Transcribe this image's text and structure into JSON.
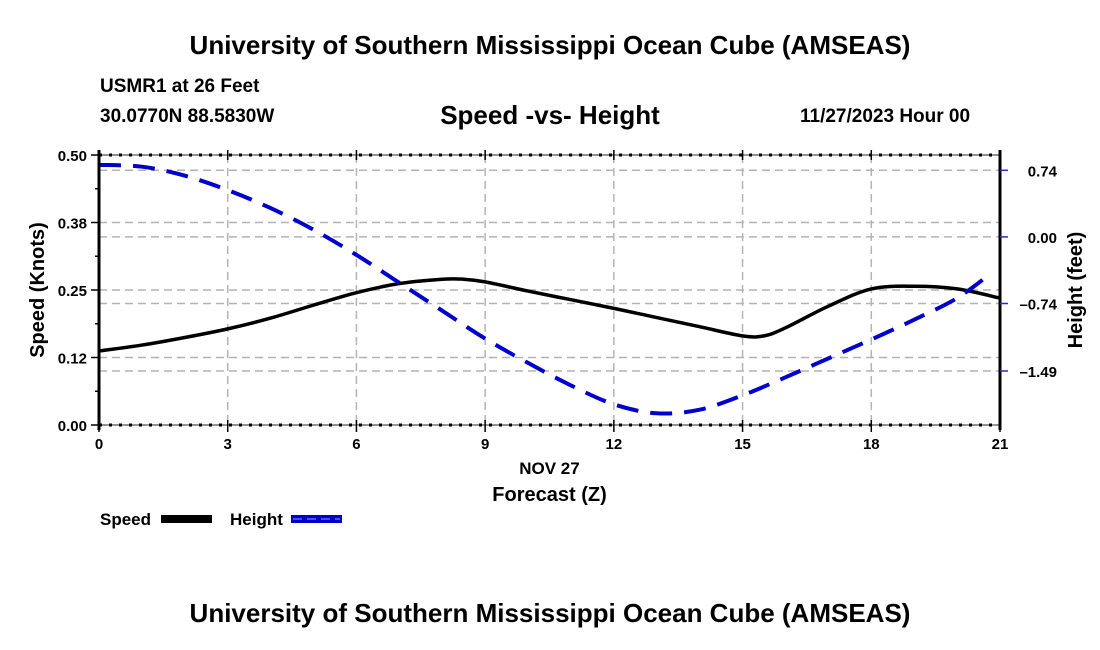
{
  "header": {
    "title_top": "University of Southern Mississippi Ocean Cube (AMSEAS)",
    "station": "USMR1 at 26 Feet",
    "coords": "30.0770N  88.5830W",
    "subtitle": "Speed -vs- Height",
    "datetime": "11/27/2023 Hour 00",
    "title_bottom": "University of Southern Mississippi Ocean Cube (AMSEAS)"
  },
  "chart_data": {
    "type": "line",
    "title": "Speed -vs- Height",
    "xlabel": "Forecast (Z)",
    "xlabel_date": "NOV 27",
    "ylabel": "Speed (Knots)",
    "y2label": "Height (feet)",
    "xlim": [
      0,
      21
    ],
    "ylim": [
      0,
      0.5
    ],
    "y2lim": [
      -2.09,
      0.91
    ],
    "x_ticks": [
      0,
      3,
      6,
      9,
      12,
      15,
      18,
      21
    ],
    "x_tick_labels": [
      "0",
      "3",
      "6",
      "9",
      "12",
      "15",
      "18",
      "21"
    ],
    "y_ticks": [
      0.0,
      0.125,
      0.25,
      0.375,
      0.5
    ],
    "y_tick_labels": [
      "0.00",
      "0.12",
      "0.25",
      "0.38",
      "0.50"
    ],
    "y2_ticks": [
      0.74,
      0.0,
      -0.74,
      -1.49
    ],
    "y2_tick_labels": [
      "0.74",
      "0.00",
      "-0.74",
      "-1.49"
    ],
    "grid": true,
    "legend_position": "bottom-left",
    "series": [
      {
        "name": "Speed",
        "axis": "left",
        "style": "solid",
        "color": "#000000",
        "x": [
          0,
          1,
          2,
          3,
          4,
          5,
          6,
          7,
          8,
          8.5,
          9,
          10,
          11,
          12,
          13,
          14,
          15,
          15.5,
          16,
          17,
          18,
          19,
          20,
          21
        ],
        "values": [
          0.137,
          0.148,
          0.162,
          0.178,
          0.198,
          0.222,
          0.245,
          0.262,
          0.27,
          0.27,
          0.265,
          0.248,
          0.232,
          0.216,
          0.199,
          0.182,
          0.165,
          0.165,
          0.18,
          0.22,
          0.252,
          0.257,
          0.252,
          0.235
        ]
      },
      {
        "name": "Height",
        "axis": "right",
        "style": "dashed",
        "color": "#0000cc",
        "x": [
          0,
          1,
          2,
          3,
          4,
          5,
          6,
          7,
          8,
          9,
          10,
          11,
          12,
          13,
          14,
          15,
          16,
          17,
          18,
          19,
          20,
          20.8
        ],
        "values": [
          0.8,
          0.78,
          0.68,
          0.52,
          0.32,
          0.08,
          -0.2,
          -0.51,
          -0.82,
          -1.13,
          -1.4,
          -1.65,
          -1.86,
          -1.96,
          -1.92,
          -1.76,
          -1.56,
          -1.35,
          -1.14,
          -0.92,
          -0.68,
          -0.4
        ]
      }
    ]
  }
}
